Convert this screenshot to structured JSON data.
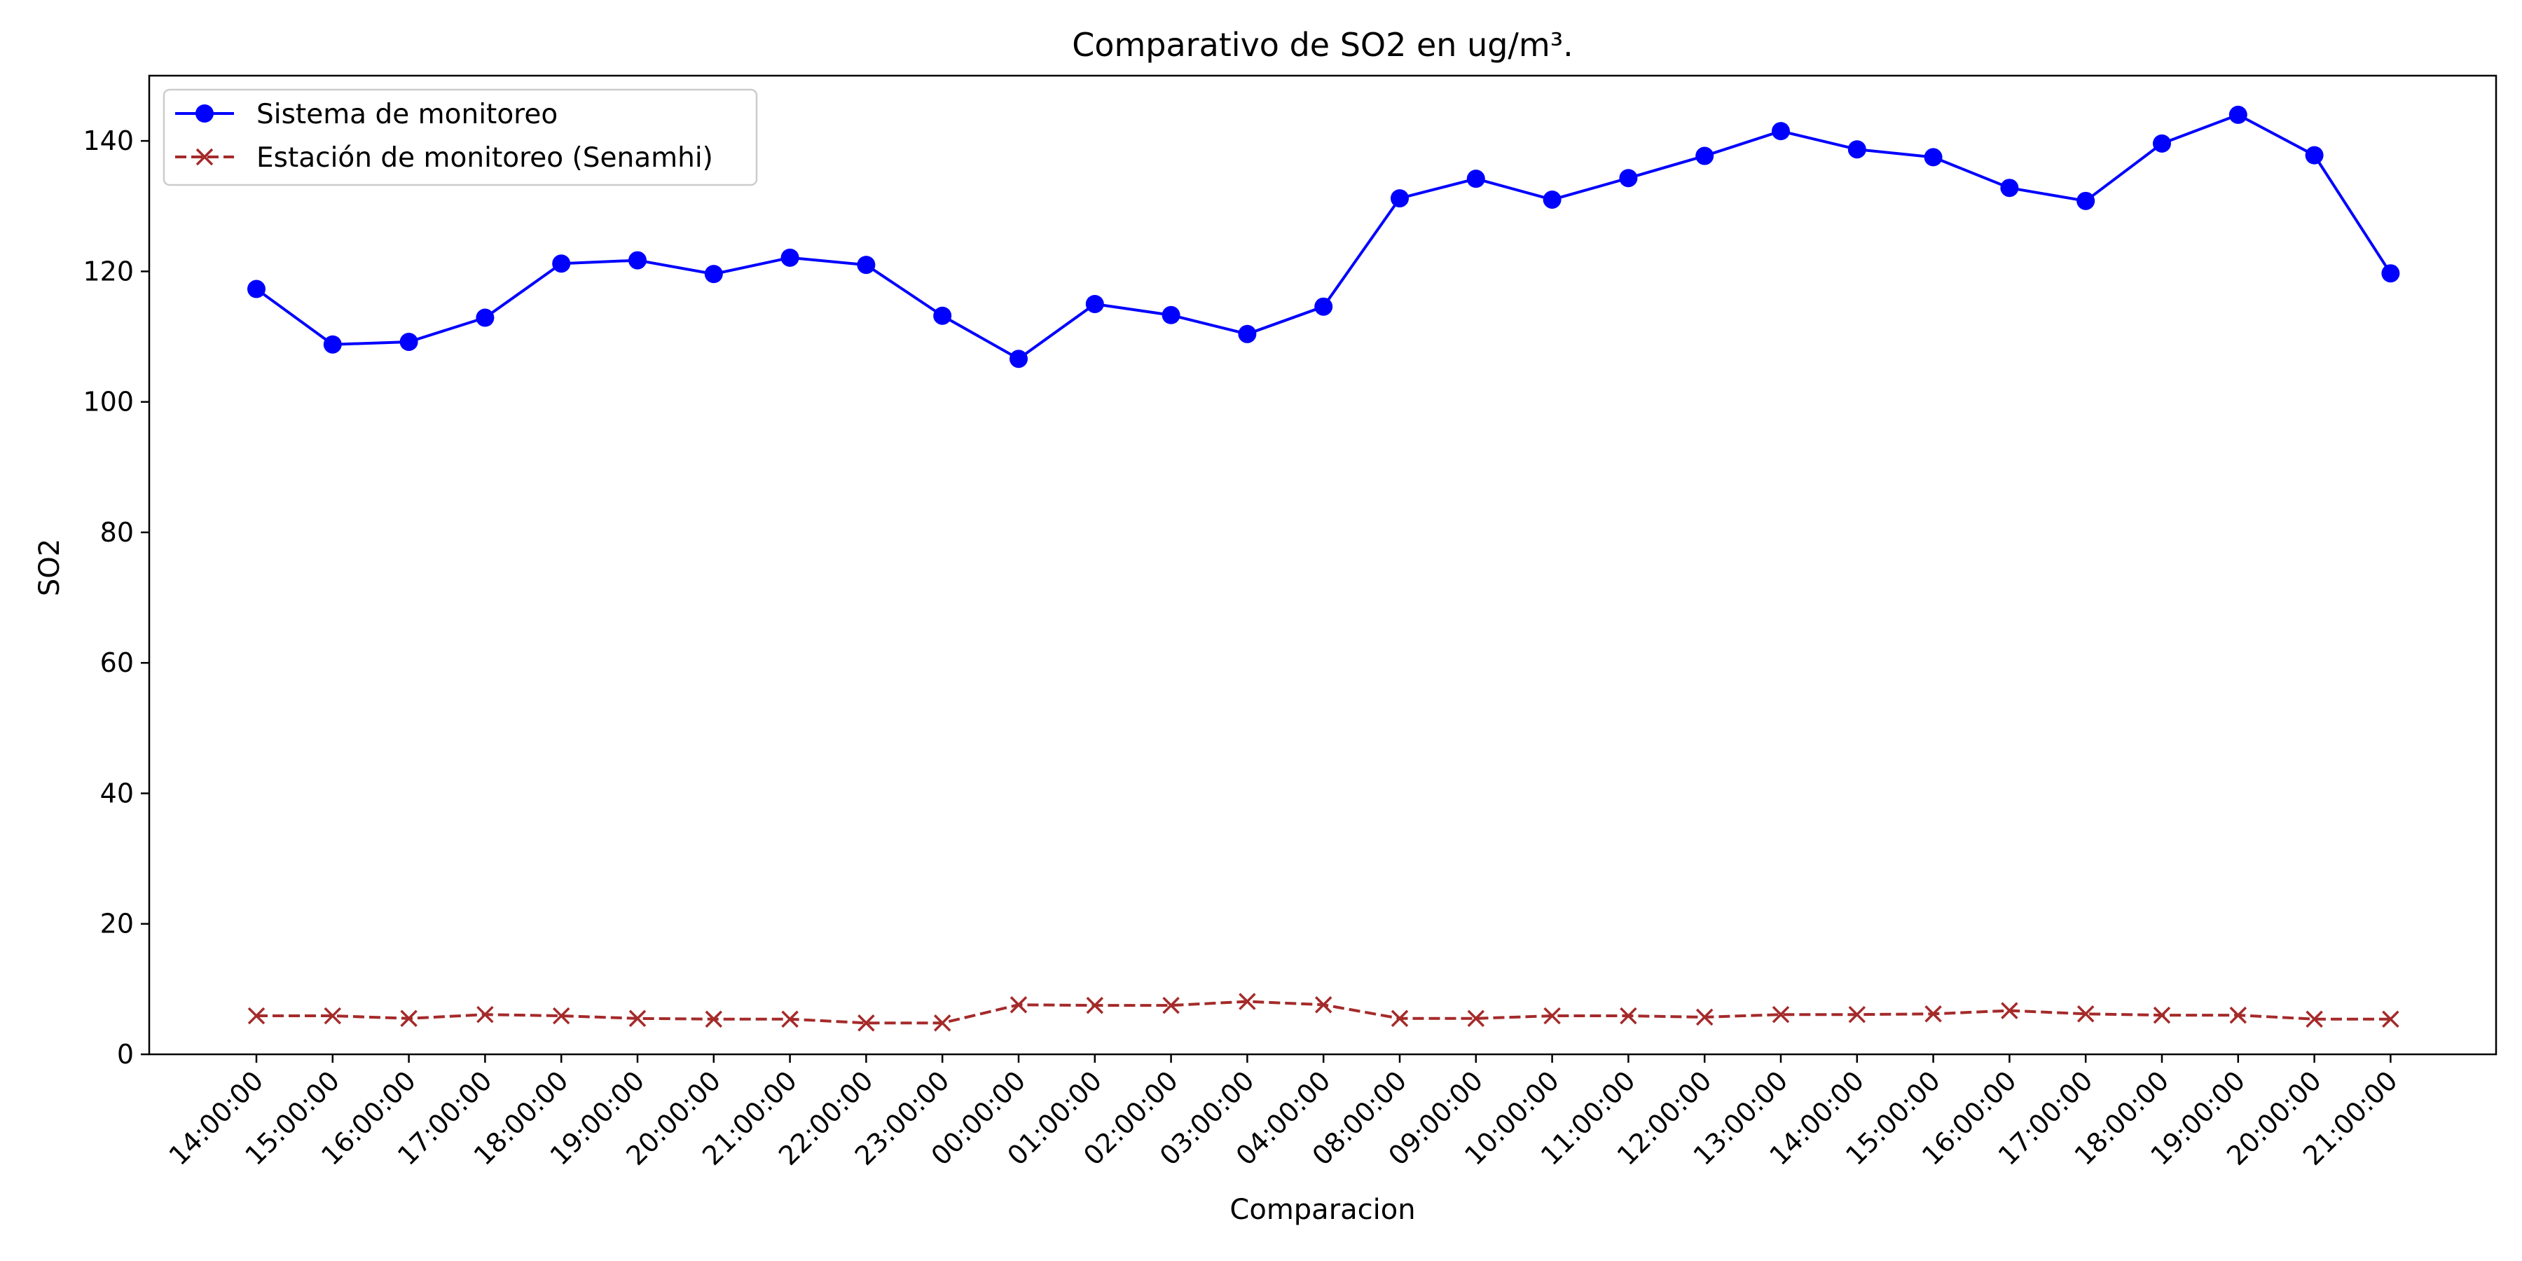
{
  "chart_data": {
    "type": "line",
    "title": "Comparativo de SO2 en ug/m³.",
    "xlabel": "Comparacion",
    "ylabel": "SO2",
    "ylim": [
      0,
      150
    ],
    "yticks": [
      0,
      20,
      40,
      60,
      80,
      100,
      120,
      140
    ],
    "grid": false,
    "legend_position": "top-left",
    "categories": [
      "14:00:00",
      "15:00:00",
      "16:00:00",
      "17:00:00",
      "18:00:00",
      "19:00:00",
      "20:00:00",
      "21:00:00",
      "22:00:00",
      "23:00:00",
      "00:00:00",
      "01:00:00",
      "02:00:00",
      "03:00:00",
      "04:00:00",
      "08:00:00",
      "09:00:00",
      "10:00:00",
      "11:00:00",
      "12:00:00",
      "13:00:00",
      "14:00:00",
      "15:00:00",
      "16:00:00",
      "17:00:00",
      "18:00:00",
      "19:00:00",
      "20:00:00",
      "21:00:00"
    ],
    "series": [
      {
        "name": "Sistema de monitoreo",
        "color": "#0000ff",
        "marker": "circle",
        "line_style": "solid",
        "values": [
          117.3,
          108.8,
          109.2,
          112.9,
          121.2,
          121.7,
          119.6,
          122.1,
          121.0,
          113.2,
          106.6,
          115.0,
          113.3,
          110.4,
          114.6,
          131.2,
          134.2,
          131.0,
          134.3,
          137.7,
          141.5,
          138.7,
          137.5,
          132.8,
          130.8,
          139.6,
          144.0,
          137.8,
          119.7
        ]
      },
      {
        "name": "Estación de monitoreo (Senamhi)",
        "color": "#a52a2a",
        "marker": "x",
        "line_style": "dashed",
        "values": [
          5.9,
          5.9,
          5.5,
          6.1,
          5.9,
          5.5,
          5.4,
          5.4,
          4.8,
          4.8,
          7.6,
          7.5,
          7.5,
          8.1,
          7.6,
          5.5,
          5.5,
          5.9,
          5.9,
          5.7,
          6.1,
          6.1,
          6.2,
          6.7,
          6.2,
          6.0,
          6.0,
          5.4,
          5.4
        ]
      }
    ]
  }
}
